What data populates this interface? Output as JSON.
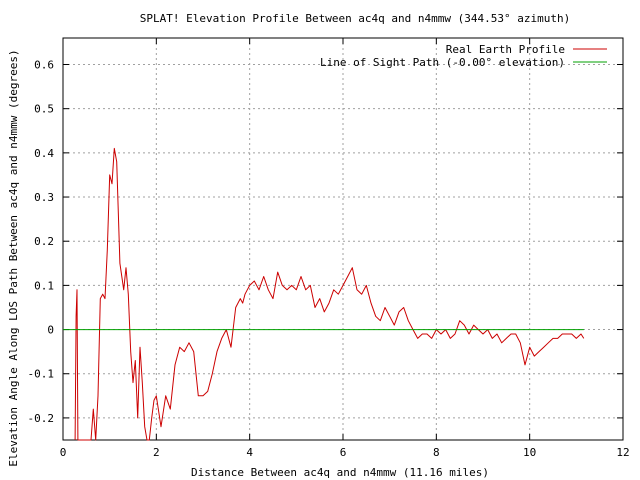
{
  "chart_data": {
    "type": "line",
    "title": "SPLAT! Elevation Profile Between ac4q and n4mmw (344.53° azimuth)",
    "xlabel": "Distance Between ac4q and n4mmw (11.16 miles)",
    "ylabel": "Elevation Angle Along LOS Path Between ac4q and n4mmw (degrees)",
    "xlim": [
      0,
      12
    ],
    "ylim": [
      -0.25,
      0.66
    ],
    "xticks": [
      "0",
      "2",
      "4",
      "6",
      "8",
      "10",
      "12"
    ],
    "xtick_values": [
      0,
      2,
      4,
      6,
      8,
      10,
      12
    ],
    "yticks": [
      "-0.2",
      "-0.1",
      "0",
      "0.1",
      "0.2",
      "0.3",
      "0.4",
      "0.5",
      "0.6"
    ],
    "ytick_values": [
      -0.2,
      -0.1,
      0,
      0.1,
      0.2,
      0.3,
      0.4,
      0.5,
      0.6
    ],
    "grid": true,
    "legend_position": "top-right",
    "series": [
      {
        "name": "Real Earth Profile",
        "color": "#cc0000",
        "x": [
          0.26,
          0.28,
          0.3,
          0.32,
          0.34,
          0.36,
          0.4,
          0.45,
          0.5,
          0.55,
          0.6,
          0.65,
          0.7,
          0.75,
          0.8,
          0.85,
          0.9,
          0.95,
          1.0,
          1.05,
          1.1,
          1.15,
          1.18,
          1.22,
          1.26,
          1.3,
          1.35,
          1.4,
          1.45,
          1.5,
          1.55,
          1.6,
          1.65,
          1.7,
          1.75,
          1.8,
          1.85,
          1.9,
          1.95,
          2.0,
          2.1,
          2.2,
          2.3,
          2.4,
          2.5,
          2.6,
          2.7,
          2.8,
          2.9,
          3.0,
          3.1,
          3.2,
          3.3,
          3.4,
          3.5,
          3.6,
          3.7,
          3.8,
          3.85,
          3.9,
          3.95,
          4.0,
          4.1,
          4.2,
          4.3,
          4.4,
          4.5,
          4.6,
          4.7,
          4.8,
          4.9,
          5.0,
          5.1,
          5.2,
          5.3,
          5.4,
          5.5,
          5.6,
          5.7,
          5.8,
          5.9,
          6.0,
          6.1,
          6.2,
          6.3,
          6.4,
          6.5,
          6.6,
          6.7,
          6.8,
          6.9,
          7.0,
          7.1,
          7.2,
          7.3,
          7.4,
          7.5,
          7.6,
          7.7,
          7.8,
          7.9,
          8.0,
          8.1,
          8.2,
          8.3,
          8.4,
          8.5,
          8.6,
          8.7,
          8.8,
          8.9,
          9.0,
          9.1,
          9.2,
          9.3,
          9.4,
          9.5,
          9.6,
          9.7,
          9.8,
          9.9,
          10.0,
          10.1,
          10.2,
          10.3,
          10.4,
          10.5,
          10.6,
          10.7,
          10.8,
          10.9,
          11.0,
          11.1,
          11.16
        ],
        "y": [
          -0.25,
          0.03,
          0.09,
          -0.25,
          -0.25,
          -0.25,
          -0.25,
          -0.25,
          -0.25,
          -0.25,
          -0.25,
          -0.18,
          -0.25,
          -0.15,
          0.07,
          0.08,
          0.07,
          0.18,
          0.35,
          0.33,
          0.41,
          0.38,
          0.28,
          0.15,
          0.12,
          0.09,
          0.14,
          0.08,
          -0.05,
          -0.12,
          -0.07,
          -0.2,
          -0.04,
          -0.12,
          -0.22,
          -0.25,
          -0.25,
          -0.2,
          -0.16,
          -0.15,
          -0.22,
          -0.15,
          -0.18,
          -0.08,
          -0.04,
          -0.05,
          -0.03,
          -0.05,
          -0.15,
          -0.15,
          -0.14,
          -0.1,
          -0.05,
          -0.02,
          0.0,
          -0.04,
          0.05,
          0.07,
          0.06,
          0.08,
          0.09,
          0.1,
          0.11,
          0.09,
          0.12,
          0.09,
          0.07,
          0.13,
          0.1,
          0.09,
          0.1,
          0.09,
          0.12,
          0.09,
          0.1,
          0.05,
          0.07,
          0.04,
          0.06,
          0.09,
          0.08,
          0.1,
          0.12,
          0.14,
          0.09,
          0.08,
          0.1,
          0.06,
          0.03,
          0.02,
          0.05,
          0.03,
          0.01,
          0.04,
          0.05,
          0.02,
          0.0,
          -0.02,
          -0.01,
          -0.01,
          -0.02,
          0.0,
          -0.01,
          0.0,
          -0.02,
          -0.01,
          0.02,
          0.01,
          -0.01,
          0.01,
          0.0,
          -0.01,
          0.0,
          -0.02,
          -0.01,
          -0.03,
          -0.02,
          -0.01,
          -0.01,
          -0.03,
          -0.08,
          -0.04,
          -0.06,
          -0.05,
          -0.04,
          -0.03,
          -0.02,
          -0.02,
          -0.01,
          -0.01,
          -0.01,
          -0.02,
          -0.01,
          -0.02
        ]
      },
      {
        "name": "Line of Sight Path (-0.00° elevation)",
        "color": "#00a000",
        "x": [
          0,
          11.16
        ],
        "y": [
          0,
          0
        ]
      }
    ]
  }
}
